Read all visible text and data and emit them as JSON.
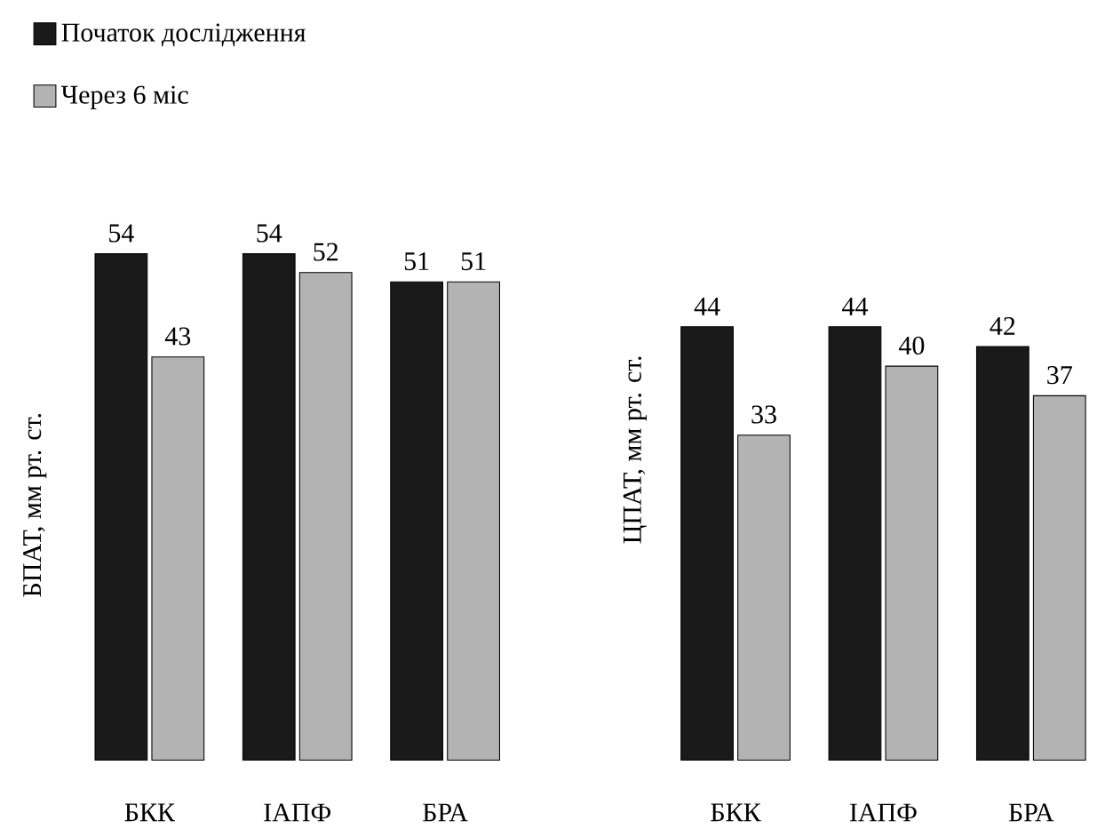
{
  "chart_data": [
    {
      "type": "bar",
      "ylabel": "БПАТ, мм рт. ст.",
      "categories": [
        "БКК",
        "ІАПФ",
        "БРА"
      ],
      "data_labels": true,
      "legend": "top left",
      "series": [
        {
          "name": "Початок дослідження",
          "color": "#1a1a1a",
          "values": [
            54,
            54,
            51
          ]
        },
        {
          "name": "Через 6 міс",
          "color": "#b3b3b3",
          "values": [
            43,
            52,
            51
          ]
        }
      ]
    },
    {
      "type": "bar",
      "ylabel": "ЦПАТ, мм рт. ст.",
      "categories": [
        "БКК",
        "ІАПФ",
        "БРА"
      ],
      "data_labels": true,
      "series": [
        {
          "color": "#1a1a1a",
          "values": [
            44,
            44,
            42
          ]
        },
        {
          "color": "#b3b3b3",
          "values": [
            33,
            40,
            37
          ]
        }
      ]
    }
  ]
}
